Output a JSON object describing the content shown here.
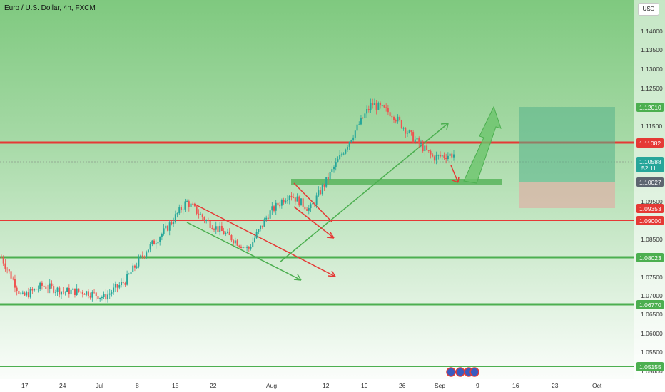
{
  "header": {
    "title": "Euro / U.S. Dollar, 4h, FXCM",
    "currency_button": "USD"
  },
  "price_axis": {
    "ticks": [
      "1.14000",
      "1.13500",
      "1.13000",
      "1.12500",
      "1.11500",
      "1.09500",
      "1.08500",
      "1.07500",
      "1.07000",
      "1.06500",
      "1.06000",
      "1.05500",
      "1.05000"
    ]
  },
  "time_axis": {
    "labels": [
      "17",
      "24",
      "Jul",
      "8",
      "15",
      "22",
      "Aug",
      "12",
      "19",
      "26",
      "Sep",
      "9",
      "16",
      "23",
      "Oct"
    ]
  },
  "price_labels": {
    "target": "1.12010",
    "level_1": "1.11082",
    "current": "1.10588",
    "countdown": "52:11",
    "entry": "1.10027",
    "stop": "1.09353",
    "level_2": "1.09000",
    "level_3": "1.08023",
    "level_4": "1.06770",
    "level_5": "1.05155"
  },
  "chart_data": {
    "type": "candlestick",
    "symbol": "EUR/USD",
    "timeframe": "4h",
    "y_range": [
      1.0495,
      1.1445
    ],
    "close_path": [
      {
        "date": "Jun 13",
        "close": 1.08
      },
      {
        "date": "Jun 14",
        "close": 1.07
      },
      {
        "date": "Jun 17",
        "close": 1.073
      },
      {
        "date": "Jun 20",
        "close": 1.0715
      },
      {
        "date": "Jun 24",
        "close": 1.0715
      },
      {
        "date": "Jun 26",
        "close": 1.07
      },
      {
        "date": "Jul 1",
        "close": 1.074
      },
      {
        "date": "Jul 5",
        "close": 1.0815
      },
      {
        "date": "Jul 11",
        "close": 1.087
      },
      {
        "date": "Jul 17",
        "close": 1.094
      },
      {
        "date": "Jul 22",
        "close": 1.089
      },
      {
        "date": "Jul 26",
        "close": 1.0855
      },
      {
        "date": "Jul 31",
        "close": 1.082
      },
      {
        "date": "Aug 2",
        "close": 1.091
      },
      {
        "date": "Aug 5",
        "close": 1.096
      },
      {
        "date": "Aug 9",
        "close": 1.092
      },
      {
        "date": "Aug 14",
        "close": 1.101
      },
      {
        "date": "Aug 20",
        "close": 1.11
      },
      {
        "date": "Aug 23",
        "close": 1.1185
      },
      {
        "date": "Aug 26",
        "close": 1.116
      },
      {
        "date": "Aug 29",
        "close": 1.11
      },
      {
        "date": "Sep 3",
        "close": 1.105
      },
      {
        "date": "Sep 4",
        "close": 1.1059
      }
    ],
    "horizontal_levels": [
      {
        "price": 1.11082,
        "color": "#e53935"
      },
      {
        "price": 1.09,
        "color": "#e53935"
      },
      {
        "price": 1.08023,
        "color": "#4caf50"
      },
      {
        "price": 1.0677,
        "color": "#4caf50"
      },
      {
        "price": 1.05155,
        "color": "#4caf50"
      }
    ],
    "current_price": 1.10588,
    "position": {
      "type": "long",
      "entry": 1.10027,
      "stop": 1.09353,
      "target": 1.1201
    },
    "colors": {
      "up": "#26a69a",
      "down": "#ef5350",
      "support": "#4caf50",
      "resistance": "#e53935",
      "price_tag": "#e9ecef"
    }
  }
}
